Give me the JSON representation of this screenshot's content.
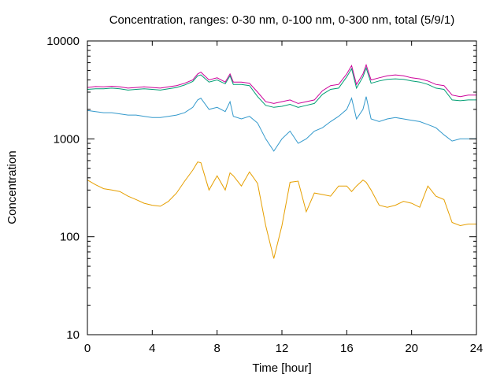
{
  "chart_data": {
    "type": "line",
    "title": "Concentration, ranges: 0-30 nm, 0-100 nm, 0-300 nm, total (5/9/1)",
    "xlabel": "Time [hour]",
    "ylabel": "Concentration",
    "xlim": [
      0,
      24
    ],
    "ylim": [
      10,
      10000
    ],
    "yscale": "log",
    "xticks": [
      0,
      4,
      8,
      12,
      16,
      20,
      24
    ],
    "yticks": [
      10,
      100,
      1000,
      10000
    ],
    "xtick_labels": [
      "0",
      "4",
      "8",
      "12",
      "16",
      "20",
      "24"
    ],
    "ytick_labels": [
      "10",
      "100",
      "1000",
      "10000"
    ],
    "grid": false,
    "legend": "none",
    "x": [
      0,
      0.5,
      1,
      1.5,
      2,
      2.5,
      3,
      3.5,
      4,
      4.5,
      5,
      5.5,
      6,
      6.5,
      6.8,
      7,
      7.5,
      8,
      8.5,
      8.8,
      9,
      9.5,
      10,
      10.5,
      11,
      11.5,
      12,
      12.5,
      13,
      13.5,
      14,
      14.5,
      15,
      15.5,
      16,
      16.3,
      16.6,
      17,
      17.2,
      17.5,
      18,
      18.5,
      19,
      19.5,
      20,
      20.5,
      21,
      21.5,
      22,
      22.5,
      23,
      23.5,
      24
    ],
    "series": [
      {
        "color": "#cc0099",
        "values": [
          3350,
          3420,
          3400,
          3450,
          3400,
          3300,
          3350,
          3400,
          3350,
          3300,
          3400,
          3500,
          3700,
          4000,
          4600,
          4800,
          4000,
          4200,
          3800,
          4600,
          3800,
          3800,
          3700,
          3000,
          2400,
          2300,
          2400,
          2500,
          2300,
          2400,
          2500,
          3100,
          3500,
          3600,
          4600,
          5600,
          3600,
          4600,
          5700,
          4000,
          4200,
          4400,
          4500,
          4400,
          4200,
          4100,
          3900,
          3600,
          3500,
          2800,
          2700,
          2800,
          2800
        ]
      },
      {
        "color": "#009e73",
        "values": [
          3200,
          3250,
          3250,
          3300,
          3250,
          3150,
          3200,
          3250,
          3200,
          3150,
          3250,
          3350,
          3550,
          3850,
          4400,
          4500,
          3800,
          4000,
          3650,
          4400,
          3600,
          3600,
          3500,
          2700,
          2200,
          2100,
          2150,
          2250,
          2100,
          2200,
          2300,
          2850,
          3200,
          3300,
          4300,
          5200,
          3300,
          4300,
          5300,
          3700,
          3900,
          4050,
          4100,
          4050,
          3900,
          3800,
          3600,
          3300,
          3200,
          2500,
          2450,
          2500,
          2500
        ]
      },
      {
        "color": "#3399cc",
        "values": [
          1950,
          1900,
          1850,
          1850,
          1800,
          1750,
          1750,
          1700,
          1650,
          1650,
          1700,
          1750,
          1850,
          2100,
          2500,
          2600,
          2000,
          2100,
          1900,
          2400,
          1700,
          1600,
          1700,
          1450,
          1000,
          750,
          1000,
          1200,
          900,
          1000,
          1200,
          1300,
          1500,
          1700,
          2000,
          2600,
          1600,
          2000,
          2700,
          1600,
          1500,
          1600,
          1650,
          1600,
          1550,
          1500,
          1400,
          1300,
          1100,
          950,
          1000,
          1000,
          1000
        ]
      },
      {
        "color": "#e69f00",
        "values": [
          380,
          340,
          310,
          300,
          290,
          260,
          240,
          220,
          210,
          205,
          230,
          280,
          370,
          480,
          580,
          570,
          300,
          420,
          300,
          450,
          420,
          330,
          460,
          350,
          130,
          60,
          130,
          360,
          370,
          180,
          280,
          270,
          260,
          330,
          330,
          290,
          330,
          380,
          360,
          300,
          210,
          200,
          210,
          230,
          220,
          200,
          330,
          260,
          240,
          140,
          130,
          135,
          135
        ]
      }
    ]
  }
}
